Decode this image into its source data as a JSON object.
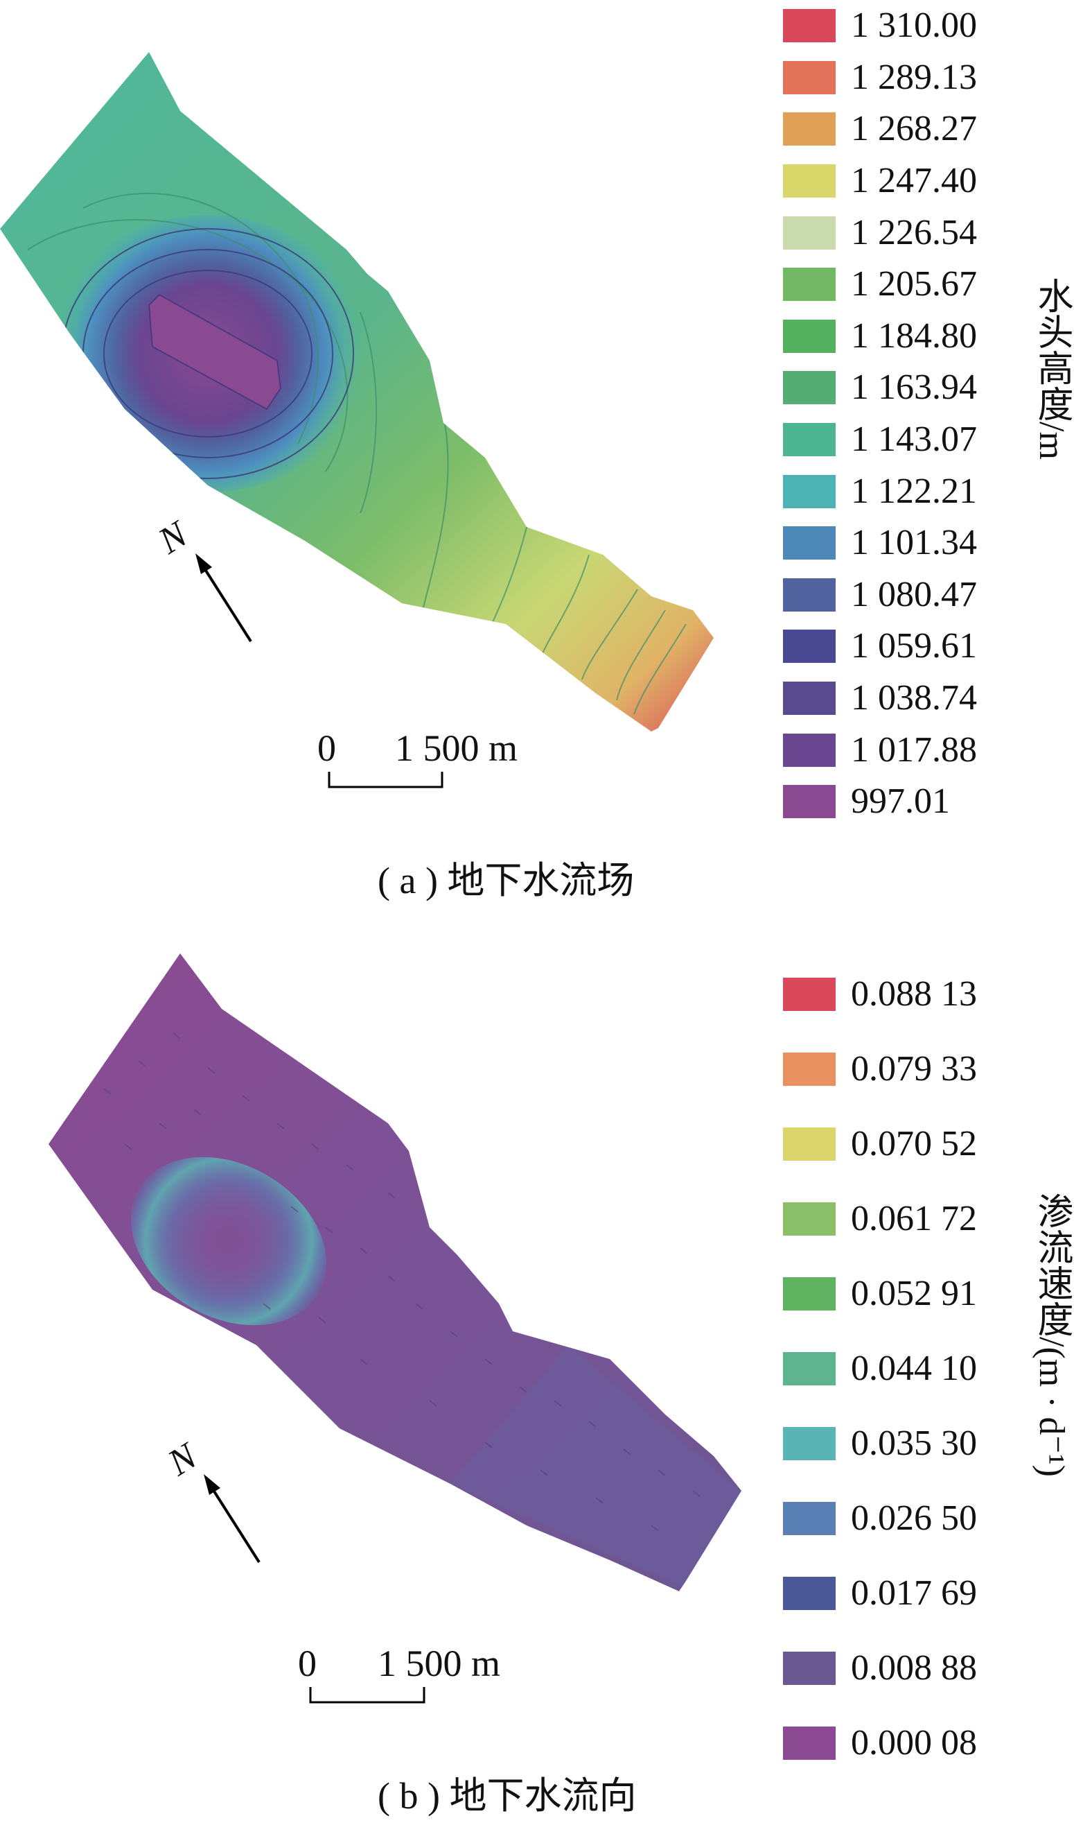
{
  "panel_a": {
    "caption": "( a ) 地下水流场",
    "legend_title": "水头高度/m",
    "legend": [
      {
        "label": "1 310.00",
        "color": "#d9485a"
      },
      {
        "label": "1 289.13",
        "color": "#e2725a"
      },
      {
        "label": "1 268.27",
        "color": "#e0a058"
      },
      {
        "label": "1 247.40",
        "color": "#d9d66a"
      },
      {
        "label": "1 226.54",
        "color": "#cadbb0"
      },
      {
        "label": "1 205.67",
        "color": "#72b865"
      },
      {
        "label": "1 184.80",
        "color": "#55b060"
      },
      {
        "label": "1 163.94",
        "color": "#56ad74"
      },
      {
        "label": "1 143.07",
        "color": "#4db491"
      },
      {
        "label": "1 122.21",
        "color": "#4bb3b4"
      },
      {
        "label": "1 101.34",
        "color": "#4d88b8"
      },
      {
        "label": "1 080.47",
        "color": "#50639f"
      },
      {
        "label": "1 059.61",
        "color": "#4a4a92"
      },
      {
        "label": "1 038.74",
        "color": "#5a4a90"
      },
      {
        "label": "1 017.88",
        "color": "#6a4590"
      },
      {
        "label": "997.01",
        "color": "#8a4a92"
      }
    ],
    "scale": {
      "zero": "0",
      "distance": "1 500 m"
    },
    "north": "N"
  },
  "panel_b": {
    "caption": "( b ) 地下水流向",
    "legend_title": "渗流速度/(m · d⁻¹)",
    "legend": [
      {
        "label": "0.088 13",
        "color": "#d9485a"
      },
      {
        "label": "0.079 33",
        "color": "#e8905e"
      },
      {
        "label": "0.070 52",
        "color": "#dcd56e"
      },
      {
        "label": "0.061 72",
        "color": "#8cbf6a"
      },
      {
        "label": "0.052 91",
        "color": "#5fb260"
      },
      {
        "label": "0.044 10",
        "color": "#5fb48f"
      },
      {
        "label": "0.035 30",
        "color": "#5bb4b4"
      },
      {
        "label": "0.026 50",
        "color": "#5a7fb4"
      },
      {
        "label": "0.017 69",
        "color": "#4a5898"
      },
      {
        "label": "0.008 88",
        "color": "#6a5892"
      },
      {
        "label": "0.000 08",
        "color": "#8c4a92"
      }
    ],
    "scale": {
      "zero": "0",
      "distance": "1 500 m"
    },
    "north": "N"
  }
}
